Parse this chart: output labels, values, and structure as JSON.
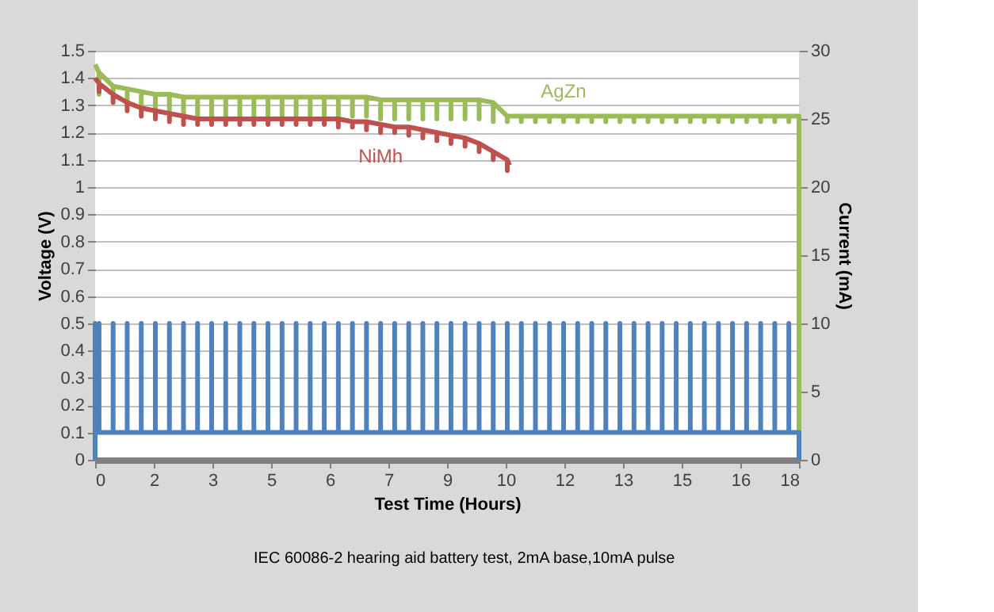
{
  "chart_data": {
    "type": "line",
    "xlabel": "Test Time (Hours)",
    "ylabel": "Voltage (V)",
    "y2label": "Current (mA)",
    "annotations": [
      "IEC 60086-2 hearing aid battery test, 2mA base,10mA pulse"
    ],
    "xlim": [
      0,
      18
    ],
    "xticks": [
      0,
      {
        "value": 1.5,
        "label": "2"
      },
      3,
      {
        "value": 4.5,
        "label": "5"
      },
      6,
      {
        "value": 7.5,
        "label": "7"
      },
      9,
      {
        "value": 10.5,
        "label": "10"
      },
      12,
      {
        "value": 13.5,
        "label": "13"
      },
      15,
      {
        "value": 16.5,
        "label": "16"
      },
      18
    ],
    "ylim": [
      0,
      1.5
    ],
    "yticks": [
      0,
      0.1,
      0.2,
      0.3,
      0.4,
      0.5,
      0.6,
      0.7,
      0.8,
      0.9,
      1,
      1.1,
      1.2,
      1.3,
      1.4,
      1.5
    ],
    "y2lim": [
      0,
      30
    ],
    "y2ticks": [
      0,
      5,
      10,
      15,
      20,
      25,
      30
    ],
    "grid": "y",
    "marker": "none",
    "line_style": "solid",
    "series": [
      {
        "name": "AgZn",
        "color": "#9bbb59",
        "x": [
          0,
          0.1,
          0.1,
          0.1,
          0.46,
          0.46,
          0.46,
          0.82,
          0.82,
          0.82,
          1.18,
          1.18,
          1.18,
          1.54,
          1.54,
          1.54,
          1.9,
          1.9,
          1.9,
          2.26,
          2.26,
          2.26,
          2.62,
          2.62,
          2.62,
          2.98,
          2.98,
          2.98,
          3.34,
          3.34,
          3.34,
          3.7,
          3.7,
          3.7,
          4.06,
          4.06,
          4.06,
          4.42,
          4.42,
          4.42,
          4.78,
          4.78,
          4.78,
          5.14,
          5.14,
          5.14,
          5.5,
          5.5,
          5.5,
          5.86,
          5.86,
          5.86,
          6.22,
          6.22,
          6.22,
          6.58,
          6.58,
          6.58,
          6.94,
          6.94,
          6.94,
          7.3,
          7.3,
          7.3,
          7.66,
          7.66,
          7.66,
          8.02,
          8.02,
          8.02,
          8.38,
          8.38,
          8.38,
          8.74,
          8.74,
          8.74,
          9.1,
          9.1,
          9.1,
          9.46,
          9.46,
          9.46,
          9.82,
          9.82,
          9.82,
          10.18,
          10.18,
          10.18,
          10.54,
          10.54,
          10.54,
          10.9,
          10.9,
          10.9,
          11.26,
          11.26,
          11.26,
          11.62,
          11.62,
          11.62,
          11.98,
          11.98,
          11.98,
          12.34,
          12.34,
          12.34,
          12.7,
          12.7,
          12.7,
          13.06,
          13.06,
          13.06,
          13.42,
          13.42,
          13.42,
          13.78,
          13.78,
          13.78,
          14.14,
          14.14,
          14.14,
          14.5,
          14.5,
          14.5,
          14.86,
          14.86,
          14.86,
          15.22,
          15.22,
          15.22,
          15.58,
          15.58,
          15.58,
          15.94,
          15.94,
          15.94,
          16.3,
          16.3,
          16.3,
          16.66,
          16.66,
          16.66,
          17.02,
          17.02,
          17.02,
          17.38,
          17.38,
          17.38,
          17.74,
          17.74,
          17.74,
          18,
          18,
          18
        ],
        "values": [
          1.45,
          1.42,
          1.34,
          1.42,
          1.37,
          1.33,
          1.37,
          1.36,
          1.3,
          1.36,
          1.35,
          1.29,
          1.35,
          1.34,
          1.28,
          1.34,
          1.34,
          1.27,
          1.34,
          1.33,
          1.26,
          1.33,
          1.33,
          1.26,
          1.33,
          1.33,
          1.26,
          1.33,
          1.33,
          1.26,
          1.33,
          1.33,
          1.26,
          1.33,
          1.33,
          1.26,
          1.33,
          1.33,
          1.26,
          1.33,
          1.33,
          1.26,
          1.33,
          1.33,
          1.26,
          1.33,
          1.33,
          1.26,
          1.33,
          1.33,
          1.26,
          1.33,
          1.33,
          1.26,
          1.33,
          1.33,
          1.26,
          1.33,
          1.33,
          1.26,
          1.33,
          1.32,
          1.25,
          1.32,
          1.32,
          1.25,
          1.32,
          1.32,
          1.25,
          1.32,
          1.32,
          1.25,
          1.32,
          1.32,
          1.25,
          1.32,
          1.32,
          1.25,
          1.32,
          1.32,
          1.25,
          1.32,
          1.32,
          1.25,
          1.32,
          1.31,
          1.24,
          1.31,
          1.26,
          1.24,
          1.26,
          1.26,
          1.24,
          1.26,
          1.26,
          1.24,
          1.26,
          1.26,
          1.24,
          1.26,
          1.26,
          1.24,
          1.26,
          1.26,
          1.24,
          1.26,
          1.26,
          1.24,
          1.26,
          1.26,
          1.24,
          1.26,
          1.26,
          1.24,
          1.26,
          1.26,
          1.24,
          1.26,
          1.26,
          1.24,
          1.26,
          1.26,
          1.24,
          1.26,
          1.26,
          1.24,
          1.26,
          1.26,
          1.24,
          1.26,
          1.26,
          1.24,
          1.26,
          1.26,
          1.24,
          1.26,
          1.26,
          1.24,
          1.26,
          1.26,
          1.24,
          1.26,
          1.26,
          1.24,
          1.26,
          1.26,
          1.24,
          1.26,
          1.26,
          1.24,
          1.26,
          1.26,
          1.1,
          0.1
        ]
      },
      {
        "name": "NiMh",
        "color": "#c0504d",
        "x": [
          0,
          0.1,
          0.1,
          0.1,
          0.46,
          0.46,
          0.46,
          0.82,
          0.82,
          0.82,
          1.18,
          1.18,
          1.18,
          1.54,
          1.54,
          1.54,
          1.9,
          1.9,
          1.9,
          2.26,
          2.26,
          2.26,
          2.62,
          2.62,
          2.62,
          2.98,
          2.98,
          2.98,
          3.34,
          3.34,
          3.34,
          3.7,
          3.7,
          3.7,
          4.06,
          4.06,
          4.06,
          4.42,
          4.42,
          4.42,
          4.78,
          4.78,
          4.78,
          5.14,
          5.14,
          5.14,
          5.5,
          5.5,
          5.5,
          5.86,
          5.86,
          5.86,
          6.22,
          6.22,
          6.22,
          6.58,
          6.58,
          6.58,
          6.94,
          6.94,
          6.94,
          7.3,
          7.3,
          7.3,
          7.66,
          7.66,
          7.66,
          8.02,
          8.02,
          8.02,
          8.38,
          8.38,
          8.38,
          8.74,
          8.74,
          8.74,
          9.1,
          9.1,
          9.1,
          9.46,
          9.46,
          9.46,
          9.82,
          9.82,
          9.82,
          10.18,
          10.18,
          10.18,
          10.54,
          10.54,
          10.54,
          10.6
        ],
        "values": [
          1.4,
          1.38,
          1.35,
          1.38,
          1.34,
          1.31,
          1.34,
          1.31,
          1.28,
          1.31,
          1.29,
          1.26,
          1.29,
          1.28,
          1.25,
          1.28,
          1.27,
          1.24,
          1.27,
          1.26,
          1.23,
          1.26,
          1.25,
          1.23,
          1.25,
          1.25,
          1.23,
          1.25,
          1.25,
          1.23,
          1.25,
          1.25,
          1.23,
          1.25,
          1.25,
          1.23,
          1.25,
          1.25,
          1.23,
          1.25,
          1.25,
          1.23,
          1.25,
          1.25,
          1.23,
          1.25,
          1.25,
          1.23,
          1.25,
          1.25,
          1.23,
          1.25,
          1.25,
          1.22,
          1.25,
          1.24,
          1.22,
          1.24,
          1.24,
          1.21,
          1.24,
          1.23,
          1.2,
          1.23,
          1.22,
          1.2,
          1.22,
          1.22,
          1.19,
          1.22,
          1.21,
          1.18,
          1.21,
          1.2,
          1.17,
          1.2,
          1.19,
          1.16,
          1.19,
          1.18,
          1.15,
          1.18,
          1.16,
          1.13,
          1.16,
          1.13,
          1.1,
          1.13,
          1.1,
          1.06,
          1.1,
          1.08
        ]
      },
      {
        "color": "#4f81bd",
        "axis": "y2",
        "x": [
          0,
          0,
          0,
          0.1,
          0.1,
          0.1,
          0.46,
          0.46,
          0.46,
          0.82,
          0.82,
          0.82,
          1.18,
          1.18,
          1.18,
          1.54,
          1.54,
          1.54,
          1.9,
          1.9,
          1.9,
          2.26,
          2.26,
          2.26,
          2.62,
          2.62,
          2.62,
          2.98,
          2.98,
          2.98,
          3.34,
          3.34,
          3.34,
          3.7,
          3.7,
          3.7,
          4.06,
          4.06,
          4.06,
          4.42,
          4.42,
          4.42,
          4.78,
          4.78,
          4.78,
          5.14,
          5.14,
          5.14,
          5.5,
          5.5,
          5.5,
          5.86,
          5.86,
          5.86,
          6.22,
          6.22,
          6.22,
          6.58,
          6.58,
          6.58,
          6.94,
          6.94,
          6.94,
          7.3,
          7.3,
          7.3,
          7.66,
          7.66,
          7.66,
          8.02,
          8.02,
          8.02,
          8.38,
          8.38,
          8.38,
          8.74,
          8.74,
          8.74,
          9.1,
          9.1,
          9.1,
          9.46,
          9.46,
          9.46,
          9.82,
          9.82,
          9.82,
          10.18,
          10.18,
          10.18,
          10.54,
          10.54,
          10.54,
          10.9,
          10.9,
          10.9,
          11.26,
          11.26,
          11.26,
          11.62,
          11.62,
          11.62,
          11.98,
          11.98,
          11.98,
          12.34,
          12.34,
          12.34,
          12.7,
          12.7,
          12.7,
          13.06,
          13.06,
          13.06,
          13.42,
          13.42,
          13.42,
          13.78,
          13.78,
          13.78,
          14.14,
          14.14,
          14.14,
          14.5,
          14.5,
          14.5,
          14.86,
          14.86,
          14.86,
          15.22,
          15.22,
          15.22,
          15.58,
          15.58,
          15.58,
          15.94,
          15.94,
          15.94,
          16.3,
          16.3,
          16.3,
          16.66,
          16.66,
          16.66,
          17.02,
          17.02,
          17.02,
          17.38,
          17.38,
          17.38,
          17.74,
          17.74,
          17.74,
          18,
          18
        ],
        "values": [
          0,
          10,
          2,
          2,
          10,
          2,
          2,
          10,
          2,
          2,
          10,
          2,
          2,
          10,
          2,
          2,
          10,
          2,
          2,
          10,
          2,
          2,
          10,
          2,
          2,
          10,
          2,
          2,
          10,
          2,
          2,
          10,
          2,
          2,
          10,
          2,
          2,
          10,
          2,
          2,
          10,
          2,
          2,
          10,
          2,
          2,
          10,
          2,
          2,
          10,
          2,
          2,
          10,
          2,
          2,
          10,
          2,
          2,
          10,
          2,
          2,
          10,
          2,
          2,
          10,
          2,
          2,
          10,
          2,
          2,
          10,
          2,
          2,
          10,
          2,
          2,
          10,
          2,
          2,
          10,
          2,
          2,
          10,
          2,
          2,
          10,
          2,
          2,
          10,
          2,
          2,
          10,
          2,
          2,
          10,
          2,
          2,
          10,
          2,
          2,
          10,
          2,
          2,
          10,
          2,
          2,
          10,
          2,
          2,
          10,
          2,
          2,
          10,
          2,
          2,
          10,
          2,
          2,
          10,
          2,
          2,
          10,
          2,
          2,
          10,
          2,
          2,
          10,
          2,
          2,
          10,
          2,
          2,
          10,
          2,
          2,
          10,
          2,
          2,
          10,
          2,
          2,
          10,
          2,
          2,
          10,
          2,
          2,
          10,
          2,
          2,
          10,
          2,
          2,
          0
        ]
      }
    ]
  }
}
